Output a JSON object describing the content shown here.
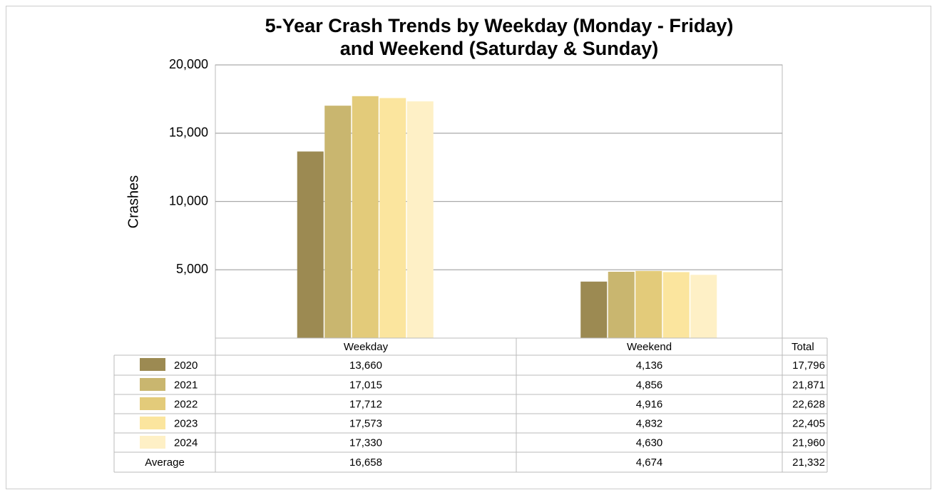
{
  "chart_data": {
    "type": "bar",
    "title": [
      "5-Year Crash Trends by Weekday (Monday - Friday)",
      "and Weekend (Saturday & Sunday)"
    ],
    "ylabel": "Crashes",
    "categories": [
      "Weekday",
      "Weekend"
    ],
    "total_header": "Total",
    "series": [
      {
        "name": "2020",
        "color": "#9c8a52",
        "values": [
          13660,
          4136
        ],
        "value_labels": [
          "13,660",
          "4,136"
        ],
        "total": "17,796"
      },
      {
        "name": "2021",
        "color": "#c9b66f",
        "values": [
          17015,
          4856
        ],
        "value_labels": [
          "17,015",
          "4,856"
        ],
        "total": "21,871"
      },
      {
        "name": "2022",
        "color": "#e3cb7a",
        "values": [
          17712,
          4916
        ],
        "value_labels": [
          "17,712",
          "4,916"
        ],
        "total": "22,628"
      },
      {
        "name": "2023",
        "color": "#fbe59e",
        "values": [
          17573,
          4832
        ],
        "value_labels": [
          "17,573",
          "4,832"
        ],
        "total": "22,405"
      },
      {
        "name": "2024",
        "color": "#fef0c6",
        "values": [
          17330,
          4630
        ],
        "value_labels": [
          "17,330",
          "4,630"
        ],
        "total": "21,960"
      }
    ],
    "average": {
      "name": "Average",
      "values": [
        "16,658",
        "4,674"
      ],
      "total": "21,332"
    },
    "ylim": [
      0,
      20000
    ],
    "yticks": [
      {
        "value": 5000,
        "label": "5,000"
      },
      {
        "value": 10000,
        "label": "10,000"
      },
      {
        "value": 15000,
        "label": "15,000"
      },
      {
        "value": 20000,
        "label": "20,000"
      }
    ],
    "grid": true
  }
}
